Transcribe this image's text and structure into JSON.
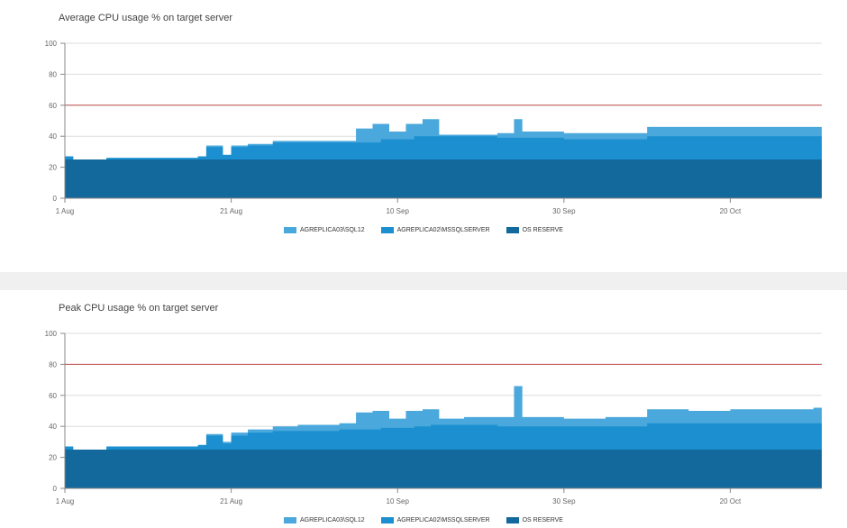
{
  "colors": {
    "sql12": "#4aa8dc",
    "mssqlserver": "#1b8fd0",
    "os_reserve": "#13699c",
    "threshold": "#c0504d",
    "grid": "#dddddd"
  },
  "chart_data": [
    {
      "type": "area",
      "title": "Average CPU usage % on target server",
      "ylim": [
        0,
        100
      ],
      "y_ticks": [
        "0",
        "20",
        "40",
        "60",
        "80",
        "100"
      ],
      "x_tick_labels": [
        "1 Aug",
        "21 Aug",
        "10 Sep",
        "30 Sep",
        "20 Oct"
      ],
      "x_tick_days": [
        0,
        20,
        40,
        60,
        80
      ],
      "x_range_days": [
        0,
        91
      ],
      "threshold": 60,
      "legend": [
        "AGREPLICA03\\SQL12",
        "AGREPLICA02\\MSSQLSERVER",
        "OS RESERVE"
      ],
      "series": [
        {
          "name": "OS RESERVE",
          "x_days": [
            0,
            91
          ],
          "values": [
            25,
            25
          ]
        },
        {
          "name": "AGREPLICA02\\MSSQLSERVER",
          "x_days": [
            0,
            1,
            5,
            10,
            16,
            17,
            19,
            20,
            22,
            25,
            28,
            33,
            36,
            38,
            42,
            44,
            46,
            48,
            50,
            52,
            54,
            60,
            65,
            70,
            75,
            80,
            85,
            90,
            91
          ],
          "values": [
            27,
            25,
            26,
            26,
            27,
            33,
            28,
            33,
            34,
            36,
            36,
            36,
            36,
            38,
            40,
            40,
            40,
            40,
            40,
            39,
            39,
            38,
            38,
            40,
            40,
            40,
            40,
            40,
            28
          ]
        },
        {
          "name": "AGREPLICA03\\SQL12",
          "x_days": [
            0,
            1,
            5,
            10,
            16,
            17,
            19,
            20,
            22,
            25,
            28,
            33,
            35,
            37,
            39,
            41,
            43,
            45,
            48,
            52,
            54,
            55,
            57,
            60,
            65,
            69,
            70,
            75,
            80,
            85,
            90,
            91
          ],
          "values": [
            27,
            25,
            26,
            26,
            27,
            34,
            28,
            34,
            35,
            37,
            37,
            37,
            45,
            48,
            43,
            48,
            51,
            41,
            41,
            42,
            51,
            43,
            43,
            42,
            42,
            42,
            46,
            46,
            46,
            46,
            46,
            30
          ]
        }
      ]
    },
    {
      "type": "area",
      "title": "Peak CPU usage % on target server",
      "ylim": [
        0,
        100
      ],
      "y_ticks": [
        "0",
        "20",
        "40",
        "60",
        "80",
        "100"
      ],
      "x_tick_labels": [
        "1 Aug",
        "21 Aug",
        "10 Sep",
        "30 Sep",
        "20 Oct"
      ],
      "x_tick_days": [
        0,
        20,
        40,
        60,
        80
      ],
      "x_range_days": [
        0,
        91
      ],
      "threshold": 80,
      "legend": [
        "AGREPLICA03\\SQL12",
        "AGREPLICA02\\MSSQLSERVER",
        "OS RESERVE"
      ],
      "series": [
        {
          "name": "OS RESERVE",
          "x_days": [
            0,
            91
          ],
          "values": [
            25,
            25
          ]
        },
        {
          "name": "AGREPLICA02\\MSSQLSERVER",
          "x_days": [
            0,
            1,
            5,
            10,
            16,
            17,
            19,
            20,
            22,
            25,
            28,
            33,
            36,
            38,
            42,
            44,
            46,
            48,
            50,
            52,
            54,
            60,
            65,
            70,
            75,
            80,
            85,
            90,
            91
          ],
          "values": [
            27,
            25,
            27,
            27,
            28,
            34,
            29,
            34,
            36,
            37,
            37,
            38,
            38,
            39,
            40,
            41,
            41,
            41,
            41,
            40,
            40,
            40,
            40,
            42,
            42,
            42,
            42,
            42,
            30
          ]
        },
        {
          "name": "AGREPLICA03\\SQL12",
          "x_days": [
            0,
            1,
            5,
            10,
            16,
            17,
            19,
            20,
            22,
            25,
            28,
            33,
            35,
            37,
            39,
            41,
            43,
            45,
            48,
            52,
            54,
            55,
            57,
            60,
            65,
            69,
            70,
            75,
            80,
            85,
            90,
            91
          ],
          "values": [
            27,
            25,
            27,
            27,
            28,
            35,
            30,
            36,
            38,
            40,
            41,
            42,
            49,
            50,
            45,
            50,
            51,
            45,
            46,
            46,
            66,
            46,
            46,
            45,
            46,
            46,
            51,
            50,
            51,
            51,
            52,
            32
          ]
        }
      ]
    }
  ]
}
